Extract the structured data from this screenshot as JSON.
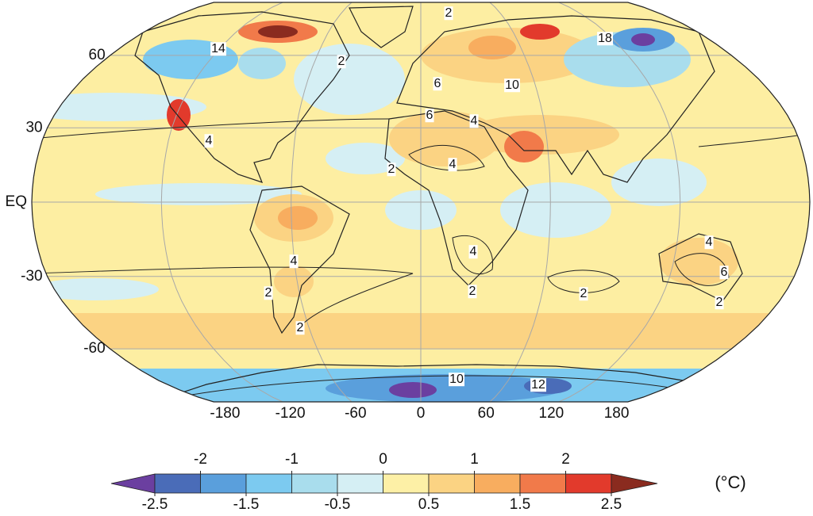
{
  "map": {
    "latitude_ticks": [
      60,
      30,
      {
        "value": 0,
        "label": "EQ"
      },
      -30,
      -60
    ],
    "longitude_ticks": [
      -180,
      -120,
      -60,
      0,
      60,
      120,
      180
    ],
    "contour_labels": [
      2,
      14,
      2,
      6,
      10,
      6,
      4,
      4,
      2,
      4,
      4,
      4,
      2,
      2,
      2,
      2,
      4,
      6,
      2,
      18,
      10,
      12
    ]
  },
  "colorbar": {
    "range": [
      -2.5,
      2.5
    ],
    "colors": [
      "#6b3fa0",
      "#4a6cb8",
      "#5a9fdc",
      "#7ccaf0",
      "#a9dded",
      "#d5eff4",
      "#fdf0a6",
      "#fbd383",
      "#f8ad5f",
      "#f17a4a",
      "#e23a2c",
      "#8a2b1f"
    ],
    "ticks_top": [
      -2,
      -1,
      0,
      1,
      2
    ],
    "ticks_bottom": [
      -2.5,
      -1.5,
      -0.5,
      0.5,
      1.5,
      2.5
    ],
    "unit": "(°C)"
  }
}
